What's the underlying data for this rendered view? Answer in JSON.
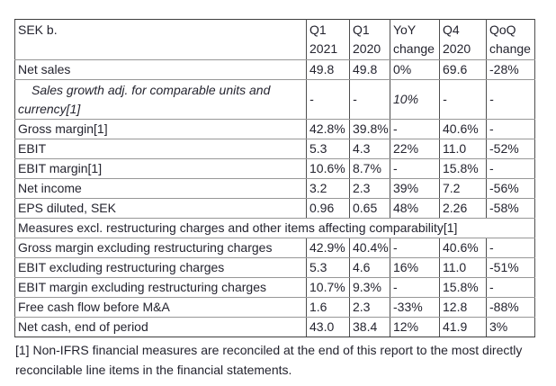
{
  "table": {
    "corner_label": "SEK b.",
    "columns": [
      "Q1\n2021",
      "Q1\n2020",
      "YoY\nchange",
      "Q4\n2020",
      "QoQ\nchange"
    ],
    "rows": [
      {
        "label": "Net sales",
        "values": [
          "49.8",
          "49.8",
          "0%",
          "69.6",
          "-28%"
        ]
      },
      {
        "label": "Sales growth adj. for comparable units and currency[1]",
        "italic": true,
        "tall": true,
        "values": [
          "-",
          "-",
          "10%",
          "-",
          "-"
        ]
      },
      {
        "label": "Gross margin[1]",
        "values": [
          "42.8%",
          "39.8%",
          "-",
          "40.6%",
          "-"
        ]
      },
      {
        "label": "EBIT",
        "values": [
          "5.3",
          "4.3",
          "22%",
          "11.0",
          "-52%"
        ]
      },
      {
        "label": "EBIT margin[1]",
        "values": [
          "10.6%",
          "8.7%",
          "-",
          "15.8%",
          "-"
        ]
      },
      {
        "label": "Net income",
        "values": [
          "3.2",
          "2.3",
          "39%",
          "7.2",
          "-56%"
        ]
      },
      {
        "label": "EPS diluted, SEK",
        "values": [
          "0.96",
          "0.65",
          "48%",
          "2.26",
          "-58%"
        ]
      },
      {
        "label": "Measures excl. restructuring charges and other items affecting comparability[1]",
        "section": true
      },
      {
        "label": "Gross margin excluding restructuring charges",
        "values": [
          "42.9%",
          "40.4%",
          "-",
          "40.6%",
          "-"
        ]
      },
      {
        "label": "EBIT excluding restructuring charges",
        "values": [
          "5.3",
          "4.6",
          "16%",
          "11.0",
          "-51%"
        ]
      },
      {
        "label": "EBIT margin excluding restructuring charges",
        "values": [
          "10.7%",
          "9.3%",
          "-",
          "15.8%",
          "-"
        ]
      },
      {
        "label": "Free cash flow before M&A",
        "values": [
          "1.6",
          "2.3",
          "-33%",
          "12.8",
          "-88%"
        ]
      },
      {
        "label": "Net cash, end of period",
        "values": [
          "43.0",
          "38.4",
          "12%",
          "41.9",
          "3%"
        ]
      }
    ]
  },
  "footnote": "[1] Non-IFRS financial measures are reconciled at the end of this report to the most directly reconcilable line items in the financial statements.",
  "colors": {
    "text": "#24242f",
    "border_vertical": "#4e4e4e",
    "border_horizontal": "#979797",
    "background": "#ffffff"
  }
}
